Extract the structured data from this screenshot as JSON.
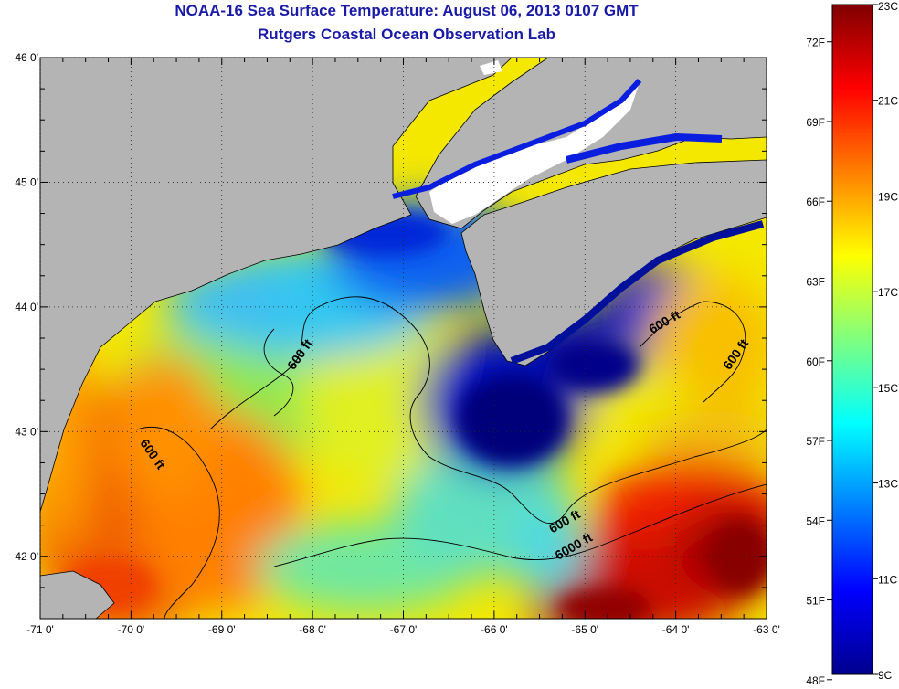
{
  "chart_data": {
    "type": "heatmap",
    "title": "NOAA-16 Sea Surface Temperature:  August 06, 2013 0107 GMT",
    "subtitle": "Rutgers Coastal Ocean Observation Lab",
    "x_ticks": [
      "-71 0'",
      "-70 0'",
      "-69 0'",
      "-68 0'",
      "-67 0'",
      "-66 0'",
      "-65 0'",
      "-64 0'",
      "-63 0'"
    ],
    "x_values": [
      -71,
      -70,
      -69,
      -68,
      -67,
      -66,
      -65,
      -64,
      -63
    ],
    "y_ticks": [
      "46 0'",
      "45 0'",
      "44 0'",
      "43 0'",
      "42 0'"
    ],
    "y_values": [
      46,
      45,
      44,
      43,
      42
    ],
    "xlim": [
      -71,
      -63
    ],
    "ylim": [
      41.5,
      46
    ],
    "grid": "dotted",
    "colorbar": {
      "celsius_labels": [
        "23C",
        "21C",
        "19C",
        "17C",
        "15C",
        "13C",
        "11C",
        "9C"
      ],
      "celsius_values": [
        23,
        21,
        19,
        17,
        15,
        13,
        11,
        9
      ],
      "fahrenheit_labels": [
        "72F",
        "69F",
        "66F",
        "63F",
        "60F",
        "57F",
        "54F",
        "51F",
        "48F"
      ],
      "fahrenheit_values": [
        72,
        69,
        66,
        63,
        60,
        57,
        54,
        51,
        48
      ],
      "range_c": [
        9,
        23
      ]
    },
    "contour_labels": [
      {
        "text": "600 ft",
        "lon": -68.1,
        "lat": 43.6
      },
      {
        "text": "600 ft",
        "lon": -69.8,
        "lat": 42.8
      },
      {
        "text": "600 ft",
        "lon": -64.1,
        "lat": 43.85
      },
      {
        "text": "600 ft",
        "lon": -63.3,
        "lat": 43.6
      },
      {
        "text": "600 ft",
        "lon": -65.2,
        "lat": 42.25
      },
      {
        "text": "6000 ft",
        "lon": -65.1,
        "lat": 42.05
      }
    ],
    "colors": {
      "land": "#b4b4b4",
      "cloud": "#ffffff"
    }
  }
}
